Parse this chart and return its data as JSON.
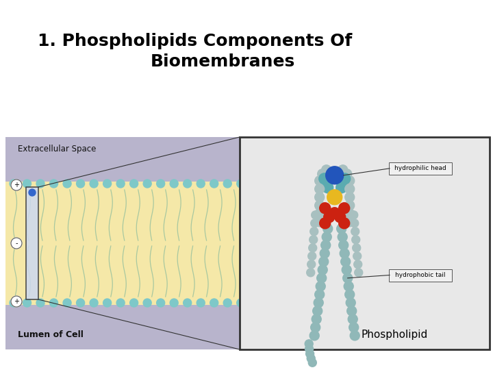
{
  "title_line1": "1. Phospholipids Components Of",
  "title_line2": "Biomembranes",
  "title_fontsize": 18,
  "title_fontweight": "bold",
  "title_color": "#000000",
  "bg_color": "#ffffff",
  "diagram_bg": "#b8b4cc",
  "lipid_bilayer_color": "#f5e8a8",
  "head_color": "#7ec8c8",
  "extracellular_label": "Extracellular Space",
  "lumen_label": "Lumen of Cell",
  "phospholipid_label": "Phospholipid",
  "hydrophilic_label": "hydrophilic head",
  "hydrophobic_label": "hydrophobic tail",
  "plus_minus": [
    "+",
    "-",
    "+"
  ]
}
